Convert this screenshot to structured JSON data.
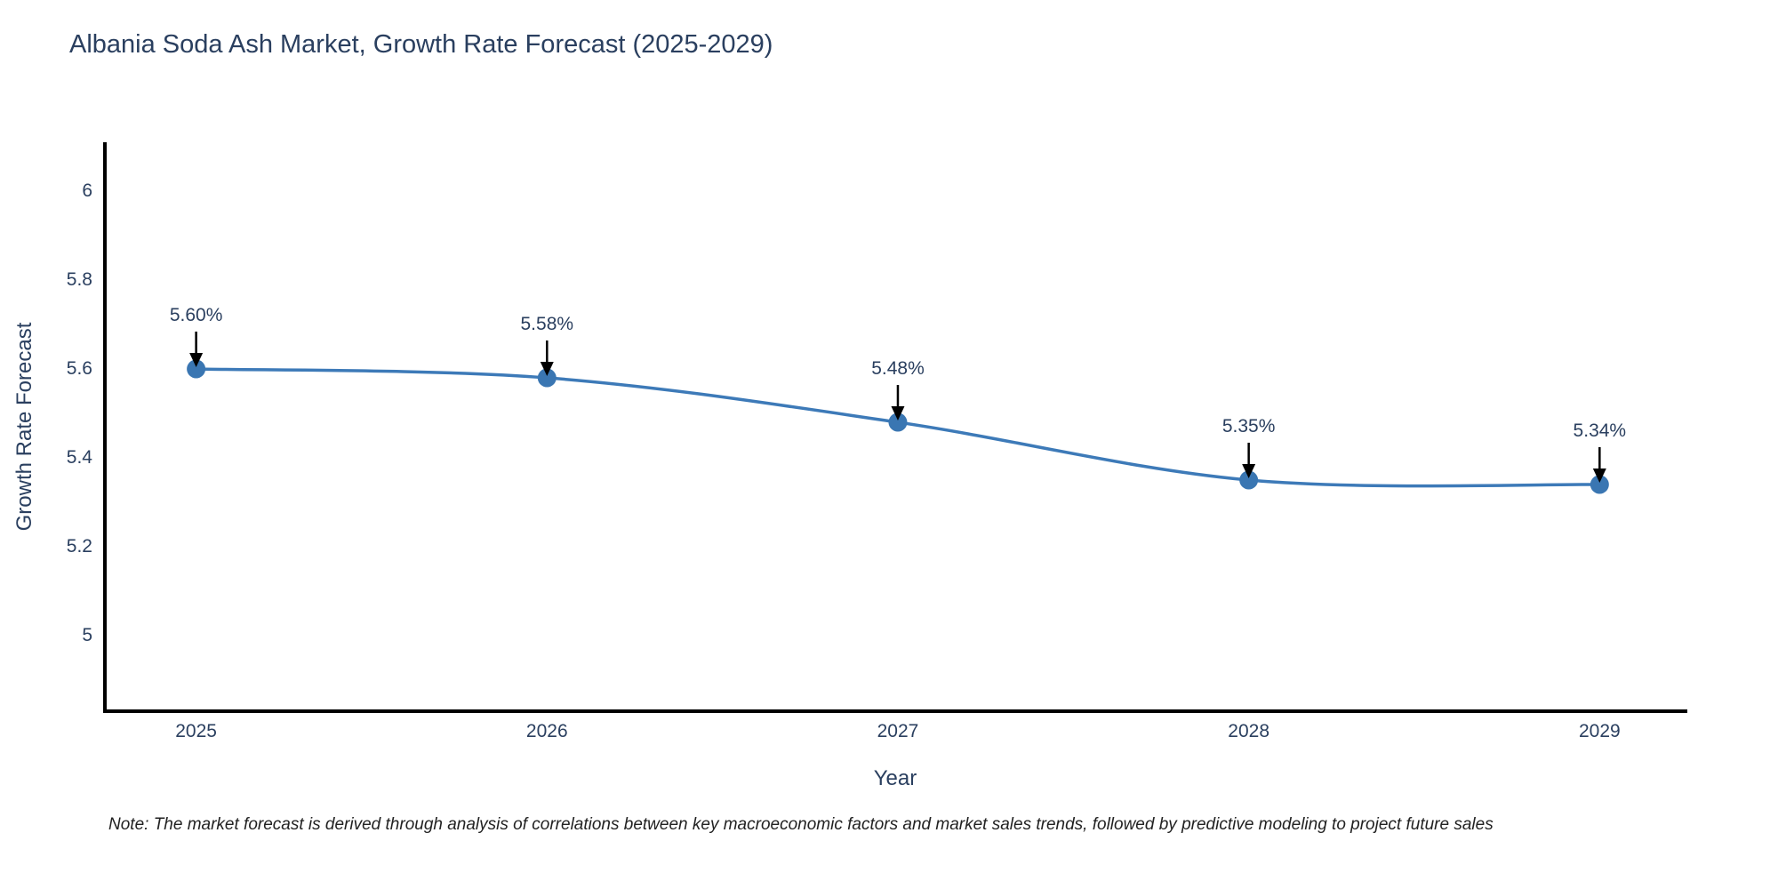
{
  "title": "Albania Soda Ash Market, Growth Rate Forecast (2025-2029)",
  "note": "Note: The market forecast is derived through analysis of correlations between key macroeconomic factors and market sales trends, followed by predictive modeling to project future sales",
  "chart_data": {
    "type": "line",
    "title": "Albania Soda Ash Market, Growth Rate Forecast (2025-2029)",
    "x": [
      2025,
      2026,
      2027,
      2028,
      2029
    ],
    "y": [
      5.6,
      5.58,
      5.48,
      5.35,
      5.34
    ],
    "point_labels": [
      "5.60%",
      "5.58%",
      "5.48%",
      "5.35%",
      "5.34%"
    ],
    "xlabel": "Year",
    "ylabel": "Growth Rate Forecast",
    "x_ticks": [
      2025,
      2026,
      2027,
      2028,
      2029
    ],
    "x_tick_labels": [
      "2025",
      "2026",
      "2027",
      "2028",
      "2029"
    ],
    "y_ticks": [
      5,
      5.2,
      5.4,
      5.6,
      5.8,
      6
    ],
    "y_tick_labels": [
      "5",
      "5.2",
      "5.4",
      "5.6",
      "5.8",
      "6"
    ],
    "xlim": [
      2024.74,
      2029.25
    ],
    "ylim": [
      4.83,
      6.11
    ],
    "line_shape": "spline",
    "grid": false,
    "legend_position": "none",
    "line_color": "#3d7ab8",
    "marker_color": "#3a76b2",
    "arrow_color": "#000000",
    "axis_color": "#000000",
    "text_color": "#2a3f5f"
  }
}
